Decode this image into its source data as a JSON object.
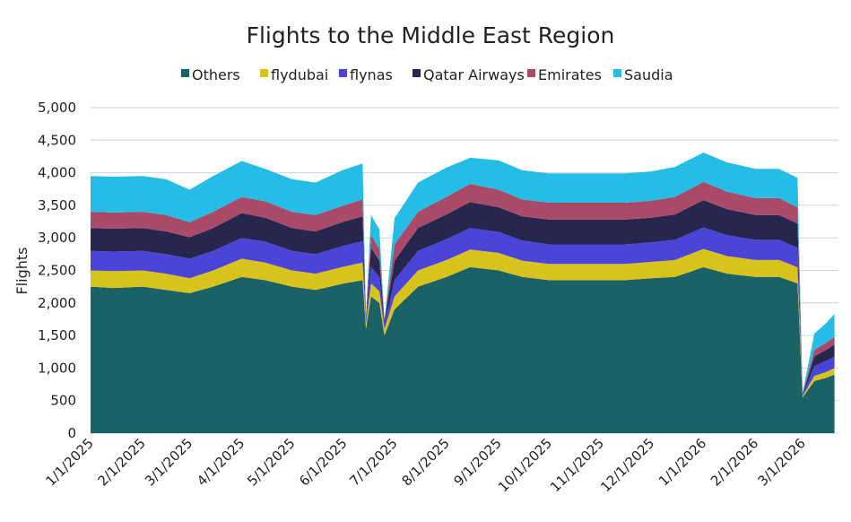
{
  "chart_data": {
    "type": "area",
    "stacked": true,
    "title": "Flights to the Middle East Region",
    "xlabel": "",
    "ylabel": "Flights",
    "ylim": [
      0,
      5000
    ],
    "yticks": [
      "0",
      "500",
      "1,000",
      "1,500",
      "2,000",
      "2,500",
      "3,000",
      "3,500",
      "4,000",
      "4,500",
      "5,000"
    ],
    "ytick_values": [
      0,
      500,
      1000,
      1500,
      2000,
      2500,
      3000,
      3500,
      4000,
      4500,
      5000
    ],
    "xticks": [
      "1/1/2025",
      "2/1/2025",
      "3/1/2025",
      "4/1/2025",
      "5/1/2025",
      "6/1/2025",
      "7/1/2025",
      "8/1/2025",
      "9/1/2025",
      "10/1/2025",
      "11/1/2025",
      "12/1/2025",
      "1/1/2026",
      "2/1/2026",
      "3/1/2026"
    ],
    "grid": true,
    "legend_position": "top",
    "x": [
      "2025-01-01",
      "2025-01-15",
      "2025-02-01",
      "2025-02-15",
      "2025-03-01",
      "2025-03-15",
      "2025-04-01",
      "2025-04-15",
      "2025-05-01",
      "2025-05-15",
      "2025-06-01",
      "2025-06-12",
      "2025-06-14",
      "2025-06-17",
      "2025-06-22",
      "2025-06-25",
      "2025-07-01",
      "2025-07-15",
      "2025-08-01",
      "2025-08-15",
      "2025-09-01",
      "2025-09-15",
      "2025-10-01",
      "2025-10-15",
      "2025-11-01",
      "2025-11-15",
      "2025-12-01",
      "2025-12-15",
      "2026-01-01",
      "2026-01-15",
      "2026-02-01",
      "2026-02-15",
      "2026-02-26",
      "2026-03-01",
      "2026-03-08",
      "2026-03-15",
      "2026-03-20"
    ],
    "series": [
      {
        "name": "Others",
        "color": "#1b6266",
        "values": [
          2250,
          2230,
          2250,
          2200,
          2150,
          2250,
          2400,
          2350,
          2250,
          2200,
          2300,
          2350,
          1600,
          2100,
          2000,
          1500,
          1900,
          2250,
          2400,
          2550,
          2500,
          2400,
          2350,
          2350,
          2350,
          2350,
          2380,
          2400,
          2550,
          2450,
          2400,
          2400,
          2300,
          550,
          800,
          850,
          900
        ]
      },
      {
        "name": "flydubai",
        "color": "#d8c21c",
        "values": [
          250,
          260,
          250,
          250,
          230,
          250,
          280,
          270,
          250,
          250,
          260,
          270,
          80,
          200,
          180,
          100,
          200,
          250,
          260,
          270,
          270,
          250,
          250,
          250,
          250,
          250,
          250,
          260,
          280,
          270,
          260,
          260,
          250,
          20,
          80,
          90,
          100
        ]
      },
      {
        "name": "flynas",
        "color": "#4a44d8",
        "values": [
          300,
          300,
          300,
          300,
          300,
          300,
          320,
          320,
          300,
          300,
          320,
          330,
          60,
          250,
          220,
          80,
          250,
          300,
          320,
          330,
          320,
          310,
          300,
          300,
          300,
          300,
          300,
          310,
          330,
          320,
          310,
          310,
          300,
          20,
          150,
          170,
          180
        ]
      },
      {
        "name": "Qatar Airways",
        "color": "#26264f",
        "values": [
          350,
          350,
          350,
          350,
          330,
          350,
          380,
          370,
          350,
          350,
          370,
          380,
          30,
          300,
          250,
          50,
          300,
          350,
          380,
          400,
          380,
          370,
          380,
          380,
          380,
          380,
          380,
          390,
          420,
          400,
          380,
          380,
          370,
          10,
          150,
          170,
          180
        ]
      },
      {
        "name": "Emirates",
        "color": "#a84a68",
        "values": [
          250,
          250,
          250,
          250,
          230,
          250,
          250,
          250,
          250,
          250,
          250,
          260,
          30,
          200,
          180,
          0,
          250,
          250,
          270,
          280,
          270,
          260,
          260,
          260,
          260,
          260,
          260,
          270,
          280,
          270,
          260,
          260,
          250,
          10,
          100,
          110,
          120
        ]
      },
      {
        "name": "Saudia",
        "color": "#25bde6",
        "values": [
          550,
          550,
          550,
          550,
          500,
          550,
          550,
          500,
          500,
          500,
          550,
          550,
          0,
          300,
          300,
          0,
          400,
          450,
          450,
          400,
          450,
          450,
          450,
          450,
          450,
          450,
          450,
          460,
          450,
          450,
          450,
          450,
          450,
          10,
          250,
          300,
          350
        ]
      }
    ]
  }
}
